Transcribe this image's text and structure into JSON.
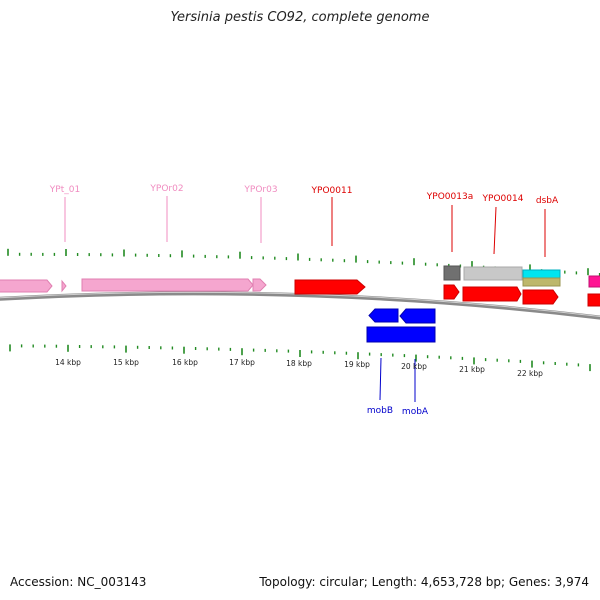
{
  "title": "Yersinia pestis CO92, complete genome",
  "footer": {
    "accession": "Accession: NC_003143",
    "stats": "Topology: circular; Length: 4,653,728 bp; Genes: 3,974"
  },
  "colors": {
    "pink": "#f5a6cf",
    "pink_dark": "#e07fb0",
    "pink_label": "#f08cc0",
    "red": "#ff0000",
    "red_dark": "#cc0000",
    "red_label": "#dd0000",
    "blue": "#0000ff",
    "blue_dark": "#0000b0",
    "blue_label": "#0000cc",
    "grey": "#c8c8c8",
    "dark_grey": "#707070",
    "cyan": "#00e5f0",
    "olive": "#bdb76b",
    "magenta": "#ff1493",
    "tick": "#228b22",
    "backbone": "#8a8a8a"
  },
  "scale_labels": [
    "14 kbp",
    "15 kbp",
    "16 kbp",
    "17 kbp",
    "18 kbp",
    "19 kbp",
    "20 kbp",
    "21 kbp",
    "22 kbp"
  ],
  "labels_top": [
    {
      "text": "YPt_01",
      "color": "pink"
    },
    {
      "text": "YPOr02",
      "color": "pink"
    },
    {
      "text": "YPOr03",
      "color": "pink"
    },
    {
      "text": "YPO0011",
      "color": "red"
    },
    {
      "text": "YPO0013a",
      "color": "red"
    },
    {
      "text": "YPO0014",
      "color": "red"
    },
    {
      "text": "dsbA",
      "color": "red"
    }
  ],
  "labels_bottom": [
    {
      "text": "mobB",
      "color": "blue"
    },
    {
      "text": "mobA",
      "color": "blue"
    }
  ]
}
